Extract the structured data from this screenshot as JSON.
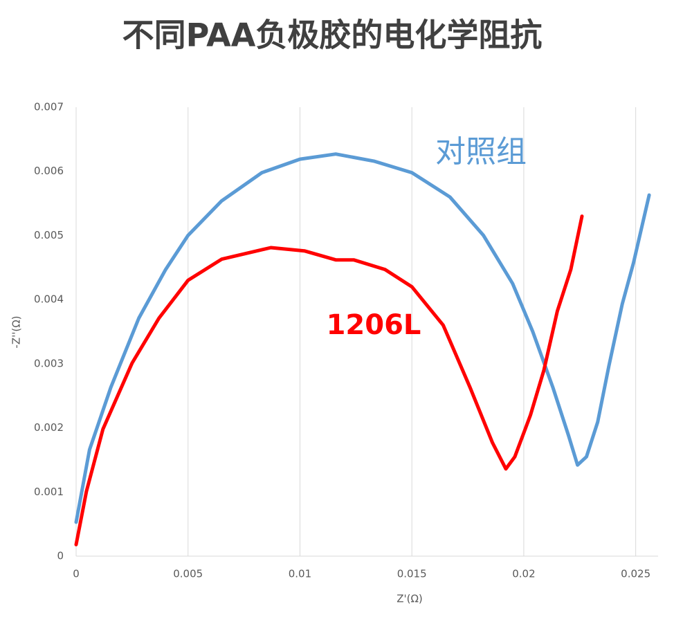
{
  "chart_data": {
    "type": "line",
    "title": "不同PAA负极胶的电化学阻抗",
    "x_label": "Z'(Ω)",
    "y_label": "-Z''(Ω)",
    "xlim": [
      0,
      0.026
    ],
    "ylim": [
      0,
      0.007
    ],
    "xticks": [
      0,
      0.005,
      0.01,
      0.015,
      0.02,
      0.025
    ],
    "yticks": [
      0,
      0.001,
      0.002,
      0.003,
      0.004,
      0.005,
      0.006,
      0.007
    ],
    "grid": "x",
    "series": [
      {
        "name": "对照组",
        "color": "#5b9bd5",
        "x": [
          0,
          0.0006,
          0.00155,
          0.0028,
          0.004,
          0.005,
          0.0065,
          0.0083,
          0.01,
          0.0116,
          0.0133,
          0.015,
          0.0167,
          0.0182,
          0.0195,
          0.0204,
          0.0213,
          0.022,
          0.0224,
          0.0228,
          0.0233,
          0.0238,
          0.0244,
          0.0249,
          0.0256
        ],
        "values": [
          0.00053,
          0.00166,
          0.00263,
          0.00371,
          0.00447,
          0.005,
          0.00554,
          0.00598,
          0.00619,
          0.00627,
          0.00616,
          0.00598,
          0.0056,
          0.005,
          0.00425,
          0.0035,
          0.00263,
          0.00188,
          0.00142,
          0.00155,
          0.00209,
          0.00296,
          0.00393,
          0.00457,
          0.00563
        ]
      },
      {
        "name": "1206L",
        "color": "#ff0000",
        "x": [
          0,
          0.00046,
          0.0012,
          0.0025,
          0.0037,
          0.005,
          0.0065,
          0.0087,
          0.0102,
          0.0116,
          0.0124,
          0.0138,
          0.015,
          0.0164,
          0.0176,
          0.0186,
          0.0192,
          0.0196,
          0.0203,
          0.0209,
          0.0215,
          0.0221,
          0.0226
        ],
        "values": [
          0.00018,
          0.00101,
          0.00198,
          0.00301,
          0.00371,
          0.0043,
          0.00463,
          0.00481,
          0.00476,
          0.00462,
          0.00462,
          0.00447,
          0.0042,
          0.0036,
          0.00263,
          0.00177,
          0.00136,
          0.00155,
          0.0022,
          0.0029,
          0.00382,
          0.00447,
          0.0053
        ]
      }
    ]
  }
}
